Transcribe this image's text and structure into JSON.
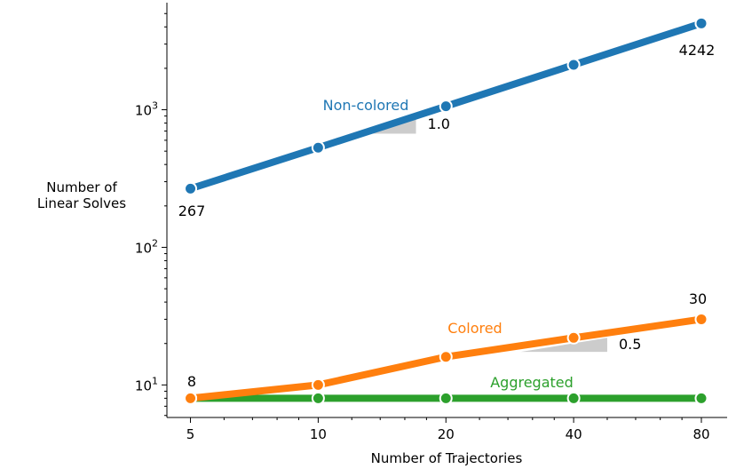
{
  "chart_data": {
    "type": "line",
    "title": "",
    "xlabel": "Number of Trajectories",
    "ylabel": [
      "Number of",
      "Linear Solves"
    ],
    "x_scale": "log2",
    "y_scale": "log10",
    "x": [
      5,
      10,
      20,
      40,
      80
    ],
    "x_tick_labels": [
      "5",
      "10",
      "20",
      "40",
      "80"
    ],
    "y_ticks": [
      {
        "value": 10,
        "base": "10",
        "exp": "1"
      },
      {
        "value": 100,
        "base": "10",
        "exp": "2"
      },
      {
        "value": 1000,
        "base": "10",
        "exp": "3"
      }
    ],
    "xlim": [
      4.4,
      92
    ],
    "ylim": [
      5.8,
      6000
    ],
    "grid": false,
    "legend": "none",
    "series": [
      {
        "name": "Non-colored",
        "color": "#1f77b4",
        "values": [
          267,
          530,
          1060,
          2120,
          4242
        ]
      },
      {
        "name": "Colored",
        "color": "#ff7f0e",
        "values": [
          8,
          10,
          16,
          22,
          30
        ]
      },
      {
        "name": "Aggregated",
        "color": "#2ca02c",
        "values": [
          8,
          8,
          8,
          8,
          8
        ]
      }
    ],
    "annotations": {
      "non_colored_start": "267",
      "non_colored_end": "4242",
      "colored_start": "8",
      "colored_end": "30"
    },
    "slope_triangles": [
      {
        "label": "1.0",
        "x_from": 12.5,
        "x_to": 17,
        "y_from": 670,
        "y_to": 910
      },
      {
        "label": "0.5",
        "x_from": 30,
        "x_to": 48,
        "y_from": 17.4,
        "y_to": 22.0
      }
    ]
  }
}
